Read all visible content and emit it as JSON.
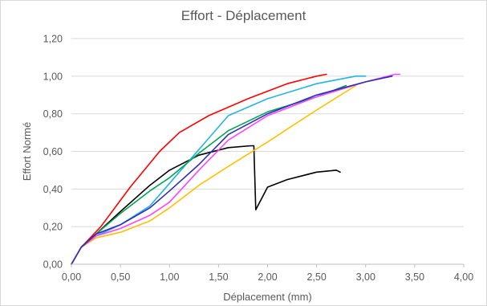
{
  "chart_data": {
    "type": "line",
    "title": "Effort - Déplacement",
    "xlabel": "Déplacement (mm)",
    "ylabel": "Effort Normé",
    "xlim": [
      0,
      4
    ],
    "ylim": [
      0,
      1.2
    ],
    "x_ticks": [
      "0,00",
      "0,50",
      "1,00",
      "1,50",
      "2,00",
      "2,50",
      "3,00",
      "3,50",
      "4,00"
    ],
    "y_ticks": [
      "0,00",
      "0,20",
      "0,40",
      "0,60",
      "0,80",
      "1,00",
      "1,20"
    ],
    "grid": "horizontal",
    "legend": "none",
    "series": [
      {
        "color": "#ff0000",
        "points": [
          [
            0,
            0
          ],
          [
            0.1,
            0.09
          ],
          [
            0.3,
            0.2
          ],
          [
            0.6,
            0.41
          ],
          [
            0.9,
            0.6
          ],
          [
            1.1,
            0.7
          ],
          [
            1.4,
            0.79
          ],
          [
            1.8,
            0.88
          ],
          [
            2.2,
            0.96
          ],
          [
            2.5,
            1.0
          ],
          [
            2.6,
            1.01
          ]
        ]
      },
      {
        "color": "#000000",
        "points": [
          [
            0,
            0
          ],
          [
            0.1,
            0.09
          ],
          [
            0.25,
            0.16
          ],
          [
            0.5,
            0.28
          ],
          [
            0.8,
            0.42
          ],
          [
            1.0,
            0.5
          ],
          [
            1.3,
            0.58
          ],
          [
            1.6,
            0.62
          ],
          [
            1.83,
            0.63
          ],
          [
            1.86,
            0.63
          ],
          [
            1.88,
            0.29
          ],
          [
            1.95,
            0.36
          ],
          [
            2.0,
            0.41
          ],
          [
            2.2,
            0.45
          ],
          [
            2.5,
            0.49
          ],
          [
            2.7,
            0.5
          ],
          [
            2.74,
            0.49
          ]
        ]
      },
      {
        "color": "#22b5e6",
        "points": [
          [
            0,
            0
          ],
          [
            0.1,
            0.09
          ],
          [
            0.25,
            0.15
          ],
          [
            0.5,
            0.21
          ],
          [
            0.8,
            0.31
          ],
          [
            1.0,
            0.43
          ],
          [
            1.3,
            0.61
          ],
          [
            1.6,
            0.79
          ],
          [
            2.0,
            0.88
          ],
          [
            2.5,
            0.96
          ],
          [
            2.9,
            1.0
          ],
          [
            3.0,
            1.0
          ]
        ]
      },
      {
        "color": "#00a651",
        "points": [
          [
            0,
            0
          ],
          [
            0.1,
            0.09
          ],
          [
            0.25,
            0.16
          ],
          [
            0.5,
            0.27
          ],
          [
            0.8,
            0.39
          ],
          [
            1.0,
            0.46
          ],
          [
            1.3,
            0.59
          ],
          [
            1.6,
            0.71
          ],
          [
            2.0,
            0.81
          ],
          [
            2.5,
            0.89
          ],
          [
            2.8,
            0.95
          ]
        ]
      },
      {
        "color": "#ffc000",
        "points": [
          [
            0,
            0
          ],
          [
            0.1,
            0.09
          ],
          [
            0.25,
            0.14
          ],
          [
            0.5,
            0.17
          ],
          [
            0.8,
            0.23
          ],
          [
            1.0,
            0.3
          ],
          [
            1.3,
            0.42
          ],
          [
            1.6,
            0.52
          ],
          [
            2.0,
            0.65
          ],
          [
            2.5,
            0.82
          ],
          [
            2.9,
            0.95
          ]
        ]
      },
      {
        "color": "#ff44ff",
        "points": [
          [
            0,
            0
          ],
          [
            0.1,
            0.09
          ],
          [
            0.25,
            0.15
          ],
          [
            0.5,
            0.19
          ],
          [
            0.8,
            0.26
          ],
          [
            1.0,
            0.33
          ],
          [
            1.3,
            0.5
          ],
          [
            1.6,
            0.66
          ],
          [
            2.0,
            0.79
          ],
          [
            2.5,
            0.89
          ],
          [
            3.0,
            0.97
          ],
          [
            3.3,
            1.01
          ],
          [
            3.35,
            1.01
          ]
        ]
      },
      {
        "color": "#2e2eb8",
        "points": [
          [
            0,
            0
          ],
          [
            0.1,
            0.09
          ],
          [
            0.25,
            0.16
          ],
          [
            0.5,
            0.21
          ],
          [
            0.8,
            0.3
          ],
          [
            1.0,
            0.39
          ],
          [
            1.3,
            0.53
          ],
          [
            1.6,
            0.69
          ],
          [
            2.0,
            0.8
          ],
          [
            2.5,
            0.9
          ],
          [
            3.0,
            0.97
          ],
          [
            3.27,
            1.0
          ]
        ]
      }
    ]
  }
}
